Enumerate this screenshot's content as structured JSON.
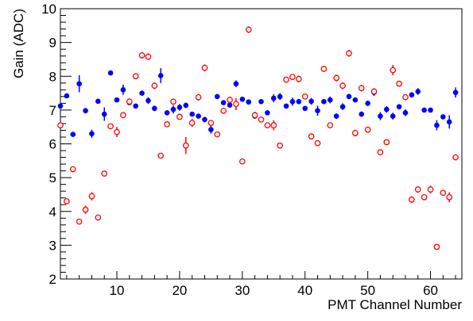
{
  "chart_data": {
    "type": "scatter",
    "title": "",
    "xlabel": "PMT Channel Number",
    "ylabel": "Gain (ADC)",
    "xlim": [
      1,
      65
    ],
    "ylim": [
      2,
      10
    ],
    "xticks": [
      10,
      20,
      30,
      40,
      50,
      60
    ],
    "yticks": [
      2,
      3,
      4,
      5,
      6,
      7,
      8,
      9,
      10
    ],
    "grid": false,
    "legend": "none",
    "series": [
      {
        "marker": "filled-circle",
        "color": "#0000ff",
        "x": [
          1,
          2,
          3,
          4,
          5,
          6,
          7,
          8,
          9,
          10,
          11,
          12,
          13,
          14,
          15,
          16,
          17,
          18,
          19,
          20,
          21,
          22,
          23,
          24,
          25,
          26,
          27,
          28,
          29,
          30,
          31,
          32,
          33,
          34,
          35,
          36,
          37,
          38,
          39,
          40,
          41,
          42,
          43,
          44,
          45,
          46,
          47,
          48,
          49,
          50,
          51,
          52,
          53,
          54,
          55,
          56,
          57,
          58,
          59,
          60,
          61,
          62,
          63,
          64
        ],
        "y": [
          7.12,
          7.42,
          6.28,
          7.78,
          6.98,
          6.3,
          7.26,
          6.88,
          8.1,
          7.3,
          7.6,
          7.22,
          7.12,
          7.5,
          7.28,
          7.05,
          8.02,
          6.92,
          7.02,
          7.08,
          7.14,
          6.88,
          6.82,
          6.72,
          6.42,
          7.4,
          7.22,
          7.15,
          7.78,
          7.32,
          7.24,
          6.82,
          7.25,
          6.92,
          7.35,
          7.4,
          7.12,
          7.25,
          7.25,
          7.05,
          7.26,
          6.98,
          7.25,
          7.3,
          6.82,
          7.1,
          7.4,
          7.3,
          6.88,
          7.2,
          7.52,
          6.82,
          7.02,
          6.82,
          7.1,
          6.92,
          7.45,
          7.55,
          7.0,
          7.0,
          6.55,
          6.8,
          6.65,
          7.52
        ],
        "yerr": [
          0.05,
          0.05,
          0.05,
          0.25,
          0.08,
          0.12,
          0.06,
          0.2,
          0.05,
          0.06,
          0.15,
          0.06,
          0.05,
          0.06,
          0.1,
          0.08,
          0.22,
          0.06,
          0.12,
          0.1,
          0.08,
          0.06,
          0.06,
          0.08,
          0.12,
          0.05,
          0.06,
          0.08,
          0.1,
          0.06,
          0.06,
          0.05,
          0.05,
          0.06,
          0.12,
          0.1,
          0.05,
          0.12,
          0.06,
          0.06,
          0.1,
          0.15,
          0.06,
          0.1,
          0.08,
          0.1,
          0.08,
          0.05,
          0.08,
          0.08,
          0.1,
          0.12,
          0.1,
          0.1,
          0.06,
          0.1,
          0.08,
          0.1,
          0.05,
          0.06,
          0.15,
          0.06,
          0.2,
          0.15
        ]
      },
      {
        "marker": "open-circle",
        "color": "#ff0000",
        "x": [
          1,
          2,
          3,
          4,
          5,
          6,
          7,
          8,
          9,
          10,
          11,
          12,
          13,
          14,
          15,
          16,
          17,
          18,
          19,
          20,
          21,
          22,
          23,
          24,
          25,
          26,
          27,
          28,
          29,
          30,
          31,
          32,
          33,
          34,
          35,
          36,
          37,
          38,
          39,
          40,
          41,
          42,
          43,
          44,
          45,
          46,
          47,
          48,
          49,
          50,
          51,
          52,
          53,
          54,
          55,
          56,
          57,
          58,
          59,
          60,
          61,
          62,
          63,
          64
        ],
        "y": [
          6.55,
          4.3,
          5.25,
          3.7,
          4.05,
          4.45,
          3.82,
          5.12,
          6.52,
          6.35,
          6.85,
          7.25,
          8.0,
          8.62,
          8.58,
          7.72,
          5.65,
          6.58,
          7.25,
          6.8,
          5.95,
          6.62,
          7.38,
          8.25,
          6.62,
          6.28,
          6.98,
          7.3,
          7.18,
          5.48,
          9.38,
          6.85,
          6.72,
          6.55,
          6.55,
          5.95,
          7.9,
          7.98,
          7.92,
          7.4,
          6.22,
          6.02,
          8.22,
          6.55,
          7.95,
          7.72,
          8.68,
          6.32,
          7.65,
          6.42,
          7.55,
          5.75,
          6.05,
          8.18,
          7.78,
          7.38,
          4.35,
          4.65,
          4.42,
          4.65,
          2.95,
          4.55,
          4.42,
          5.6
        ],
        "yerr": [
          0.05,
          0.05,
          0.05,
          0.05,
          0.12,
          0.12,
          0.05,
          0.05,
          0.06,
          0.15,
          0.08,
          0.1,
          0.06,
          0.1,
          0.1,
          0.1,
          0.05,
          0.05,
          0.08,
          0.05,
          0.25,
          0.12,
          0.1,
          0.1,
          0.05,
          0.05,
          0.06,
          0.1,
          0.18,
          0.05,
          0.1,
          0.1,
          0.05,
          0.06,
          0.15,
          0.05,
          0.08,
          0.06,
          0.1,
          0.05,
          0.05,
          0.05,
          0.05,
          0.05,
          0.1,
          0.1,
          0.1,
          0.1,
          0.1,
          0.05,
          0.1,
          0.06,
          0.06,
          0.15,
          0.06,
          0.06,
          0.1,
          0.1,
          0.05,
          0.12,
          0.05,
          0.06,
          0.15,
          0.05
        ]
      }
    ]
  }
}
